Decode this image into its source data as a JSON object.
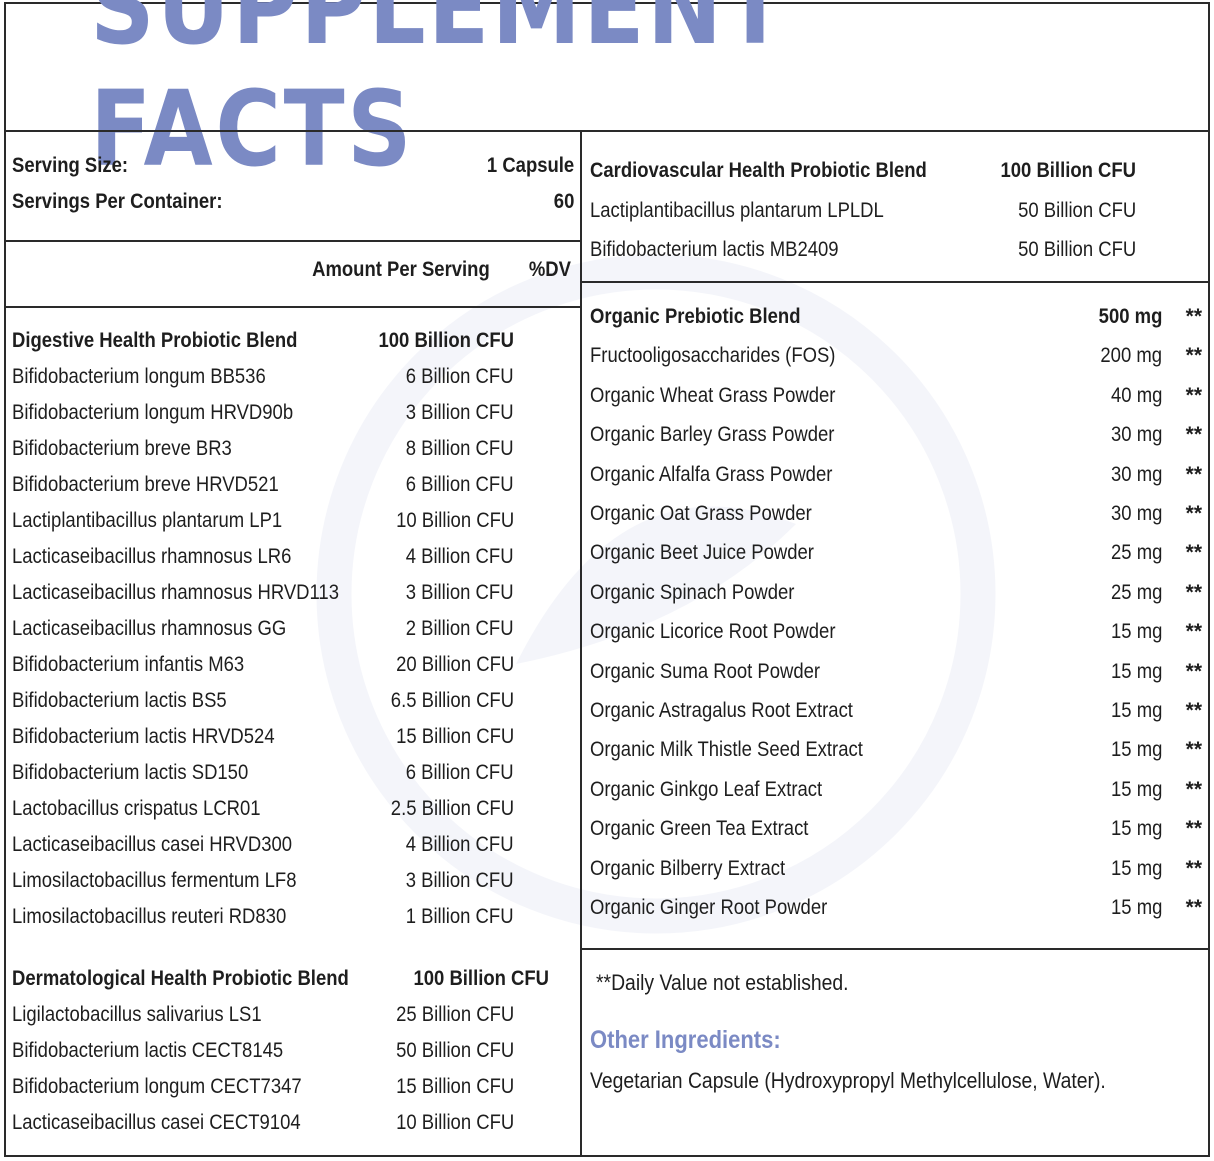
{
  "title": "SUPPLEMENT FACTS",
  "serving": {
    "size_label": "Serving Size:",
    "size_value": "1 Capsule",
    "per_container_label": "Servings Per Container:",
    "per_container_value": "60"
  },
  "columns": {
    "amount": "Amount Per Serving",
    "dv": "%DV"
  },
  "digestive": {
    "name": "Digestive Health Probiotic Blend",
    "amount": "100 Billion CFU",
    "items": [
      {
        "name": "Bifidobacterium longum BB536",
        "amount": "6 Billion CFU"
      },
      {
        "name": "Bifidobacterium longum  HRVD90b",
        "amount": "3 Billion CFU"
      },
      {
        "name": "Bifidobacterium breve BR3",
        "amount": "8 Billion CFU"
      },
      {
        "name": "Bifidobacterium breve HRVD521",
        "amount": "6 Billion CFU"
      },
      {
        "name": "Lactiplantibacillus plantarum LP1",
        "amount": "10 Billion CFU"
      },
      {
        "name": "Lacticaseibacillus rhamnosus  LR6",
        "amount": "4 Billion CFU"
      },
      {
        "name": "Lacticaseibacillus rhamnosus HRVD113",
        "amount": "3 Billion CFU"
      },
      {
        "name": "Lacticaseibacillus rhamnosus GG",
        "amount": "2 Billion CFU"
      },
      {
        "name": "Bifidobacterium infantis M63",
        "amount": "20 Billion CFU"
      },
      {
        "name": "Bifidobacterium lactis  BS5",
        "amount": "6.5 Billion CFU"
      },
      {
        "name": "Bifidobacterium lactis  HRVD524",
        "amount": "15 Billion CFU"
      },
      {
        "name": "Bifidobacterium lactis SD150",
        "amount": "6 Billion CFU"
      },
      {
        "name": "Lactobacillus crispatus LCR01",
        "amount": "2.5 Billion CFU"
      },
      {
        "name": "Lacticaseibacillus casei HRVD300",
        "amount": "4 Billion CFU"
      },
      {
        "name": "Limosilactobacillus fermentum LF8",
        "amount": "3 Billion CFU"
      },
      {
        "name": "Limosilactobacillus reuteri RD830",
        "amount": "1 Billion CFU"
      }
    ]
  },
  "dermatological": {
    "name": "Dermatological Health Probiotic Blend",
    "amount": "100 Billion CFU",
    "items": [
      {
        "name": "Ligilactobacillus salivarius LS1",
        "amount": "25 Billion CFU"
      },
      {
        "name": "Bifidobacterium lactis CECT8145",
        "amount": "50 Billion CFU"
      },
      {
        "name": "Bifidobacterium longum CECT7347",
        "amount": "15 Billion CFU"
      },
      {
        "name": "Lacticaseibacillus casei CECT9104",
        "amount": "10 Billion CFU"
      }
    ]
  },
  "cardiovascular": {
    "name": "Cardiovascular Health Probiotic Blend",
    "amount": "100 Billion CFU",
    "items": [
      {
        "name": "Lactiplantibacillus plantarum LPLDL",
        "amount": "50 Billion CFU"
      },
      {
        "name": "Bifidobacterium lactis MB2409",
        "amount": "50 Billion CFU"
      }
    ]
  },
  "prebiotic": {
    "name": "Organic Prebiotic Blend",
    "amount": "500 mg",
    "dv": "**",
    "items": [
      {
        "name": "Fructooligosaccharides (FOS)",
        "amount": "200 mg",
        "dv": "**"
      },
      {
        "name": "Organic Wheat Grass Powder",
        "amount": "40 mg",
        "dv": "**"
      },
      {
        "name": "Organic Barley Grass Powder",
        "amount": "30 mg",
        "dv": "**"
      },
      {
        "name": "Organic Alfalfa Grass Powder",
        "amount": "30 mg",
        "dv": "**"
      },
      {
        "name": "Organic Oat Grass Powder",
        "amount": "30 mg",
        "dv": "**"
      },
      {
        "name": "Organic Beet Juice Powder",
        "amount": "25 mg",
        "dv": "**"
      },
      {
        "name": "Organic Spinach Powder",
        "amount": "25 mg",
        "dv": "**"
      },
      {
        "name": "Organic Licorice Root Powder",
        "amount": "15 mg",
        "dv": "**"
      },
      {
        "name": "Organic Suma Root Powder",
        "amount": "15 mg",
        "dv": "**"
      },
      {
        "name": "Organic Astragalus Root Extract",
        "amount": "15 mg",
        "dv": "**"
      },
      {
        "name": "Organic Milk Thistle Seed Extract",
        "amount": "15 mg",
        "dv": "**"
      },
      {
        "name": "Organic Ginkgo Leaf Extract",
        "amount": "15 mg",
        "dv": "**"
      },
      {
        "name": "Organic Green Tea Extract",
        "amount": "15 mg",
        "dv": "**"
      },
      {
        "name": "Organic Bilberry Extract",
        "amount": "15 mg",
        "dv": "**"
      },
      {
        "name": "Organic Ginger Root Powder",
        "amount": "15 mg",
        "dv": "**"
      }
    ]
  },
  "footnote": "**Daily Value not established.",
  "other": {
    "title": "Other Ingredients:",
    "text": "Vegetarian Capsule (Hydroxypropyl Methylcellulose, Water)."
  },
  "colors": {
    "accent": "#7b8ac4",
    "text": "#1e1e1e",
    "rule": "#2a2a2a"
  }
}
